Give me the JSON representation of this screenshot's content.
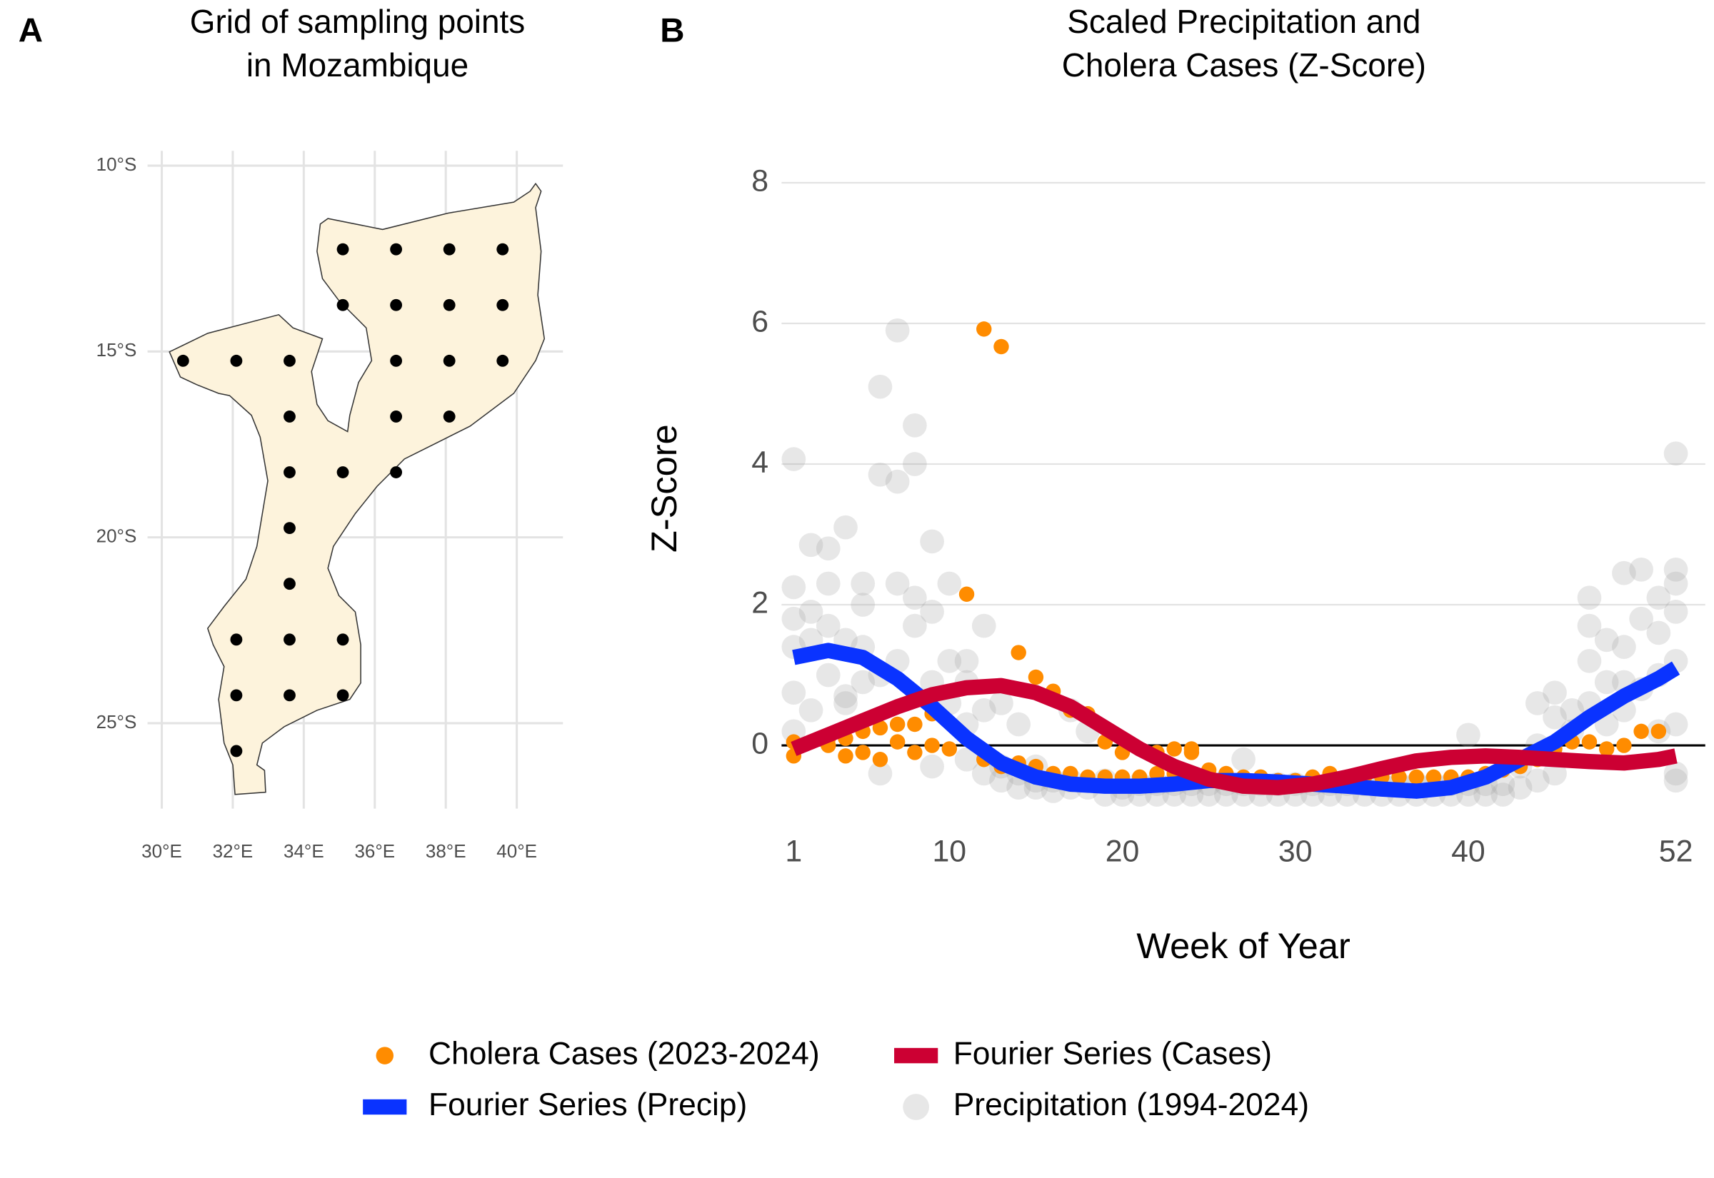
{
  "chart_data": [
    {
      "type": "map",
      "panel_label": "A",
      "title": [
        "Grid of sampling points",
        "in Mozambique"
      ],
      "x": [
        35.1,
        36.6,
        38.1,
        39.6,
        35.1,
        36.6,
        38.1,
        39.6,
        30.6,
        32.1,
        33.6,
        36.6,
        38.1,
        39.6,
        33.6,
        36.6,
        38.1,
        33.6,
        35.1,
        36.6,
        33.6,
        33.6,
        32.1,
        33.6,
        35.1,
        32.1,
        33.6,
        35.1,
        32.1
      ],
      "values": [
        -12.25,
        -12.25,
        -12.25,
        -12.25,
        -13.75,
        -13.75,
        -13.75,
        -13.75,
        -15.25,
        -15.25,
        -15.25,
        -15.25,
        -15.25,
        -15.25,
        -16.75,
        -16.75,
        -16.75,
        -18.25,
        -18.25,
        -18.25,
        -19.75,
        -21.25,
        -22.75,
        -22.75,
        -22.75,
        -24.25,
        -24.25,
        -24.25,
        -25.75
      ],
      "color": "#000000",
      "xlim": [
        29.6,
        41.3
      ],
      "ylim": [
        -27.3,
        -9.6
      ],
      "xticks": [
        {
          "value": 30,
          "label": "30°E"
        },
        {
          "value": 32,
          "label": "32°E"
        },
        {
          "value": 34,
          "label": "34°E"
        },
        {
          "value": 36,
          "label": "36°E"
        },
        {
          "value": 38,
          "label": "38°E"
        },
        {
          "value": 40,
          "label": "40°E"
        }
      ],
      "yticks": [
        {
          "value": -10,
          "label": "10°S"
        },
        {
          "value": -15,
          "label": "15°S"
        },
        {
          "value": -20,
          "label": "20°S"
        },
        {
          "value": -25,
          "label": "25°S"
        }
      ],
      "grid": true
    },
    {
      "type": "line",
      "panel_label": "B",
      "title": [
        "Scaled Precipitation and",
        "Cholera Cases (Z-Score)"
      ],
      "xlabel": "Week of Year",
      "ylabel": "Z-Score",
      "xlim": [
        0.3,
        53.7
      ],
      "ylim": [
        -1.21,
        8.19
      ],
      "xticks": [
        1,
        10,
        20,
        30,
        40,
        52
      ],
      "yticks": [
        0,
        2,
        4,
        6,
        8
      ],
      "grid": "y",
      "hline": 0,
      "legend": "bottom",
      "series": [
        {
          "name": "Cholera Cases (2023-2024)",
          "color": "#FF8C00",
          "mode": "points",
          "x": [
            1,
            1,
            2,
            3,
            3,
            4,
            4,
            5,
            5,
            6,
            6,
            7,
            7,
            8,
            8,
            9,
            9,
            10,
            11,
            11,
            12,
            12,
            13,
            13,
            14,
            14,
            15,
            15,
            16,
            16,
            17,
            17,
            18,
            18,
            19,
            19,
            20,
            20,
            21,
            21,
            22,
            22,
            23,
            23,
            24,
            24,
            25,
            26,
            27,
            28,
            29,
            30,
            31,
            32,
            33,
            34,
            35,
            36,
            37,
            38,
            39,
            40,
            41,
            42,
            43,
            44,
            45,
            46,
            47,
            48,
            49,
            50,
            51
          ],
          "values": [
            -0.15,
            0.05,
            0.05,
            0.1,
            0,
            -0.15,
            0.1,
            -0.1,
            0.2,
            -0.2,
            0.25,
            0.3,
            0.05,
            0.3,
            -0.1,
            0.45,
            0,
            -0.05,
            2.15,
            0.1,
            5.92,
            -0.2,
            5.67,
            -0.3,
            1.32,
            -0.25,
            0.97,
            -0.3,
            0.77,
            -0.4,
            0.5,
            -0.4,
            0.45,
            -0.45,
            0.05,
            -0.45,
            -0.1,
            -0.45,
            -0.45,
            -0.5,
            -0.1,
            -0.4,
            -0.05,
            -0.4,
            -0.1,
            -0.05,
            -0.35,
            -0.4,
            -0.45,
            -0.45,
            -0.5,
            -0.5,
            -0.45,
            -0.4,
            -0.45,
            -0.45,
            -0.45,
            -0.45,
            -0.45,
            -0.45,
            -0.45,
            -0.45,
            -0.4,
            -0.35,
            -0.3,
            -0.2,
            -0.05,
            0.05,
            0.05,
            -0.05,
            0,
            0.2,
            0.2
          ]
        },
        {
          "name": "Fourier Series (Cases)",
          "color": "#CC0033",
          "mode": "line",
          "x": [
            1,
            3,
            5,
            7,
            9,
            11,
            13,
            15,
            17,
            19,
            21,
            23,
            25,
            27,
            29,
            31,
            33,
            35,
            37,
            39,
            41,
            43,
            45,
            47,
            49,
            51,
            52
          ],
          "values": [
            -0.05,
            0.15,
            0.35,
            0.55,
            0.72,
            0.82,
            0.85,
            0.75,
            0.55,
            0.25,
            -0.05,
            -0.3,
            -0.48,
            -0.58,
            -0.6,
            -0.55,
            -0.45,
            -0.33,
            -0.22,
            -0.17,
            -0.15,
            -0.17,
            -0.2,
            -0.23,
            -0.25,
            -0.2,
            -0.15
          ]
        },
        {
          "name": "Fourier Series (Precip)",
          "color": "#0A33FF",
          "mode": "line",
          "x": [
            1,
            3,
            5,
            7,
            9,
            11,
            13,
            15,
            17,
            19,
            21,
            23,
            25,
            27,
            29,
            31,
            33,
            35,
            37,
            39,
            41,
            43,
            45,
            47,
            49,
            51,
            52
          ],
          "values": [
            1.25,
            1.35,
            1.25,
            0.95,
            0.55,
            0.1,
            -0.25,
            -0.45,
            -0.55,
            -0.58,
            -0.58,
            -0.55,
            -0.5,
            -0.5,
            -0.52,
            -0.55,
            -0.58,
            -0.62,
            -0.65,
            -0.6,
            -0.45,
            -0.2,
            0.05,
            0.4,
            0.7,
            0.95,
            1.1
          ]
        },
        {
          "name": "Precipitation (1994-2024)",
          "color": "#A0A0A0",
          "mode": "points",
          "opacity": 0.25,
          "x": [
            1,
            1,
            1,
            1,
            1,
            1,
            2,
            2,
            2,
            2,
            3,
            3,
            3,
            3,
            4,
            4,
            4,
            4,
            5,
            5,
            5,
            5,
            6,
            6,
            6,
            6,
            7,
            7,
            7,
            7,
            8,
            8,
            8,
            8,
            9,
            9,
            9,
            9,
            10,
            10,
            10,
            11,
            11,
            11,
            11,
            12,
            12,
            12,
            13,
            13,
            13,
            14,
            14,
            14,
            15,
            15,
            15,
            16,
            16,
            17,
            17,
            17,
            18,
            18,
            19,
            19,
            20,
            20,
            21,
            21,
            22,
            22,
            23,
            23,
            24,
            24,
            25,
            25,
            26,
            26,
            27,
            27,
            27,
            28,
            28,
            29,
            29,
            30,
            30,
            31,
            31,
            32,
            32,
            33,
            33,
            34,
            34,
            35,
            35,
            36,
            36,
            37,
            37,
            38,
            38,
            39,
            39,
            40,
            40,
            40,
            41,
            41,
            42,
            42,
            43,
            43,
            44,
            44,
            44,
            45,
            45,
            45,
            46,
            46,
            47,
            47,
            47,
            47,
            48,
            48,
            48,
            49,
            49,
            49,
            49,
            50,
            50,
            50,
            51,
            51,
            51,
            51,
            52,
            52,
            52,
            52,
            52,
            52,
            52,
            52
          ],
          "values": [
            4.07,
            2.25,
            1.8,
            1.4,
            0.75,
            0.2,
            2.85,
            1.9,
            1.5,
            0.5,
            2.8,
            2.3,
            1.7,
            1,
            3.1,
            1.5,
            0.7,
            0.6,
            2.3,
            2,
            1.4,
            0.9,
            5.1,
            3.85,
            1,
            -0.4,
            5.9,
            3.75,
            2.3,
            1.2,
            4.55,
            4,
            2.1,
            1.7,
            2.9,
            1.9,
            0.9,
            -0.3,
            2.3,
            1.2,
            0.6,
            1.2,
            0.9,
            0.3,
            -0.2,
            1.7,
            0.5,
            -0.4,
            0.6,
            -0.3,
            -0.5,
            0.3,
            -0.4,
            -0.6,
            -0.3,
            -0.5,
            -0.6,
            -0.5,
            -0.65,
            0.5,
            -0.5,
            -0.6,
            0.2,
            -0.6,
            -0.5,
            -0.7,
            -0.6,
            -0.7,
            -0.55,
            -0.7,
            -0.55,
            -0.7,
            -0.55,
            -0.7,
            -0.55,
            -0.7,
            -0.55,
            -0.7,
            -0.55,
            -0.7,
            -0.2,
            -0.55,
            -0.7,
            -0.55,
            -0.7,
            -0.55,
            -0.7,
            -0.55,
            -0.7,
            -0.55,
            -0.7,
            -0.55,
            -0.7,
            -0.55,
            -0.7,
            -0.55,
            -0.7,
            -0.55,
            -0.7,
            -0.55,
            -0.7,
            -0.55,
            -0.7,
            -0.55,
            -0.7,
            -0.55,
            -0.7,
            0.15,
            -0.55,
            -0.7,
            -0.55,
            -0.7,
            -0.55,
            -0.7,
            -0.3,
            -0.6,
            0.6,
            0,
            -0.5,
            0.75,
            0.4,
            -0.4,
            0.5,
            0.2,
            2.1,
            1.7,
            1.2,
            0.6,
            1.5,
            0.9,
            0.3,
            2.45,
            1.4,
            0.9,
            0.5,
            2.5,
            1.8,
            0.8,
            2.1,
            1.6,
            1,
            0.2,
            4.15,
            2.5,
            2.3,
            1.9,
            1.2,
            0.3,
            -0.4,
            -0.5
          ]
        }
      ]
    }
  ]
}
